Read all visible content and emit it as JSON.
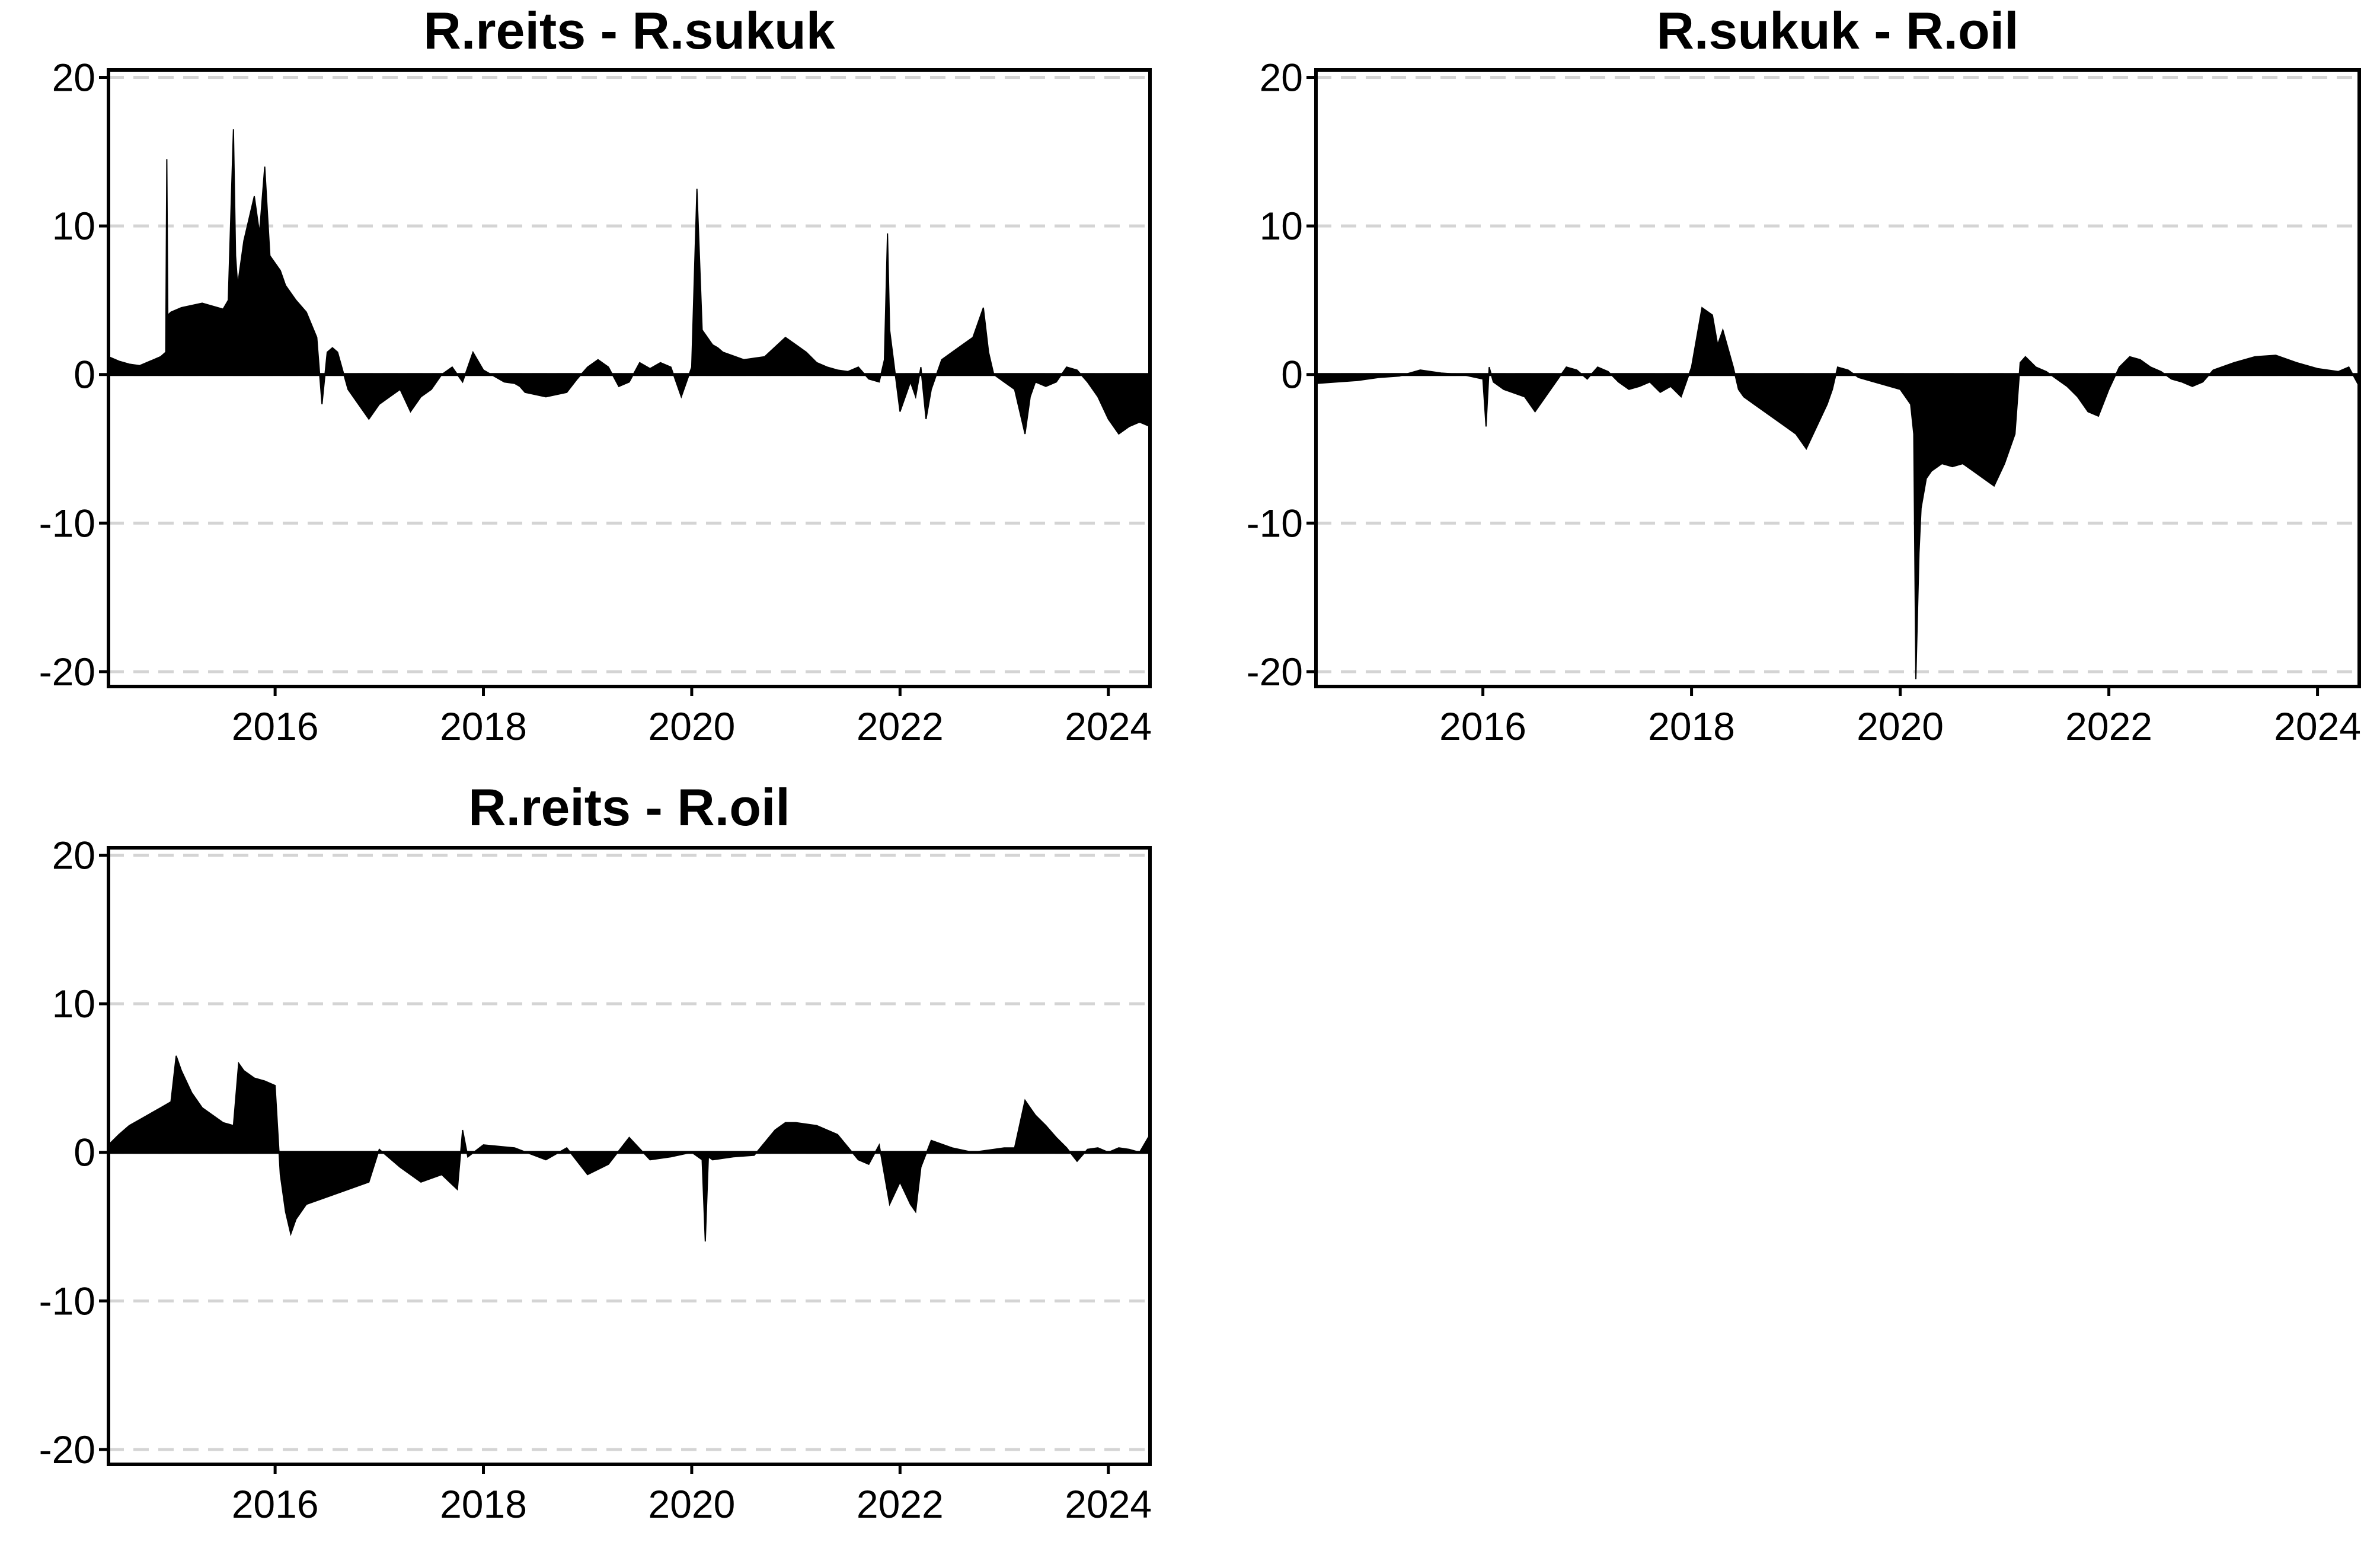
{
  "chart_data": [
    {
      "type": "area",
      "title": "R.reits - R.sukuk",
      "xlabel": "",
      "ylabel": "",
      "xlim": [
        2014.4,
        2024.4
      ],
      "ylim": [
        -21,
        20.5
      ],
      "yticks": [
        20,
        10,
        0,
        -10,
        -20
      ],
      "xticks": [
        2016,
        2018,
        2020,
        2022,
        2024
      ],
      "grid": "horizontal dashed",
      "x": [
        2014.4,
        2014.5,
        2014.6,
        2014.7,
        2014.8,
        2014.9,
        2014.95,
        2014.96,
        2014.97,
        2015.0,
        2015.1,
        2015.3,
        2015.5,
        2015.55,
        2015.6,
        2015.62,
        2015.64,
        2015.7,
        2015.8,
        2015.85,
        2015.9,
        2015.95,
        2016.0,
        2016.05,
        2016.1,
        2016.2,
        2016.3,
        2016.4,
        2016.45,
        2016.5,
        2016.55,
        2016.6,
        2016.7,
        2016.8,
        2016.9,
        2017.0,
        2017.1,
        2017.2,
        2017.3,
        2017.4,
        2017.5,
        2017.6,
        2017.7,
        2017.8,
        2017.9,
        2018.0,
        2018.2,
        2018.3,
        2018.35,
        2018.4,
        2018.6,
        2018.8,
        2018.9,
        2019.0,
        2019.1,
        2019.2,
        2019.3,
        2019.4,
        2019.5,
        2019.6,
        2019.7,
        2019.8,
        2019.9,
        2020.0,
        2020.05,
        2020.1,
        2020.15,
        2020.18,
        2020.2,
        2020.25,
        2020.3,
        2020.5,
        2020.7,
        2020.9,
        2021.0,
        2021.1,
        2021.2,
        2021.3,
        2021.4,
        2021.5,
        2021.6,
        2021.7,
        2021.8,
        2021.85,
        2021.88,
        2021.9,
        2022.0,
        2022.1,
        2022.15,
        2022.2,
        2022.25,
        2022.3,
        2022.4,
        2022.5,
        2022.6,
        2022.7,
        2022.8,
        2022.85,
        2022.9,
        2023.0,
        2023.1,
        2023.2,
        2023.25,
        2023.3,
        2023.4,
        2023.5,
        2023.6,
        2023.7,
        2023.8,
        2023.9,
        2024.0,
        2024.1,
        2024.2,
        2024.3,
        2024.4
      ],
      "y": [
        1.2,
        0.9,
        0.7,
        0.6,
        0.9,
        1.2,
        1.5,
        14.5,
        4.0,
        4.2,
        4.5,
        4.8,
        4.4,
        5.0,
        16.5,
        8.0,
        6.0,
        9.0,
        12.0,
        9.5,
        14.0,
        8.0,
        7.5,
        7.0,
        6.0,
        5.0,
        4.2,
        2.5,
        -2.0,
        1.5,
        1.8,
        1.5,
        -1.0,
        -2.0,
        -3.0,
        -2.0,
        -1.5,
        -1.0,
        -2.5,
        -1.5,
        -1.0,
        0.0,
        0.5,
        -0.5,
        1.5,
        0.3,
        -0.5,
        -0.6,
        -0.8,
        -1.2,
        -1.5,
        -1.2,
        -0.3,
        0.5,
        1.0,
        0.5,
        -0.8,
        -0.5,
        0.8,
        0.4,
        0.8,
        0.5,
        -1.5,
        0.5,
        12.5,
        3.0,
        2.5,
        2.2,
        2.0,
        1.8,
        1.5,
        1.0,
        1.2,
        2.5,
        2.0,
        1.5,
        0.8,
        0.5,
        0.3,
        0.2,
        0.5,
        -0.3,
        -0.5,
        1.0,
        9.5,
        3.0,
        -2.5,
        -0.5,
        -1.5,
        0.5,
        -3.0,
        -1.0,
        1.0,
        1.5,
        2.0,
        2.5,
        4.5,
        1.5,
        0.0,
        -0.5,
        -1.0,
        -4.0,
        -1.5,
        -0.5,
        -0.8,
        -0.5,
        0.5,
        0.3,
        -0.5,
        -1.5,
        -3.0,
        -4.0,
        -3.5,
        -3.2,
        -3.5
      ]
    },
    {
      "type": "area",
      "title": "R.sukuk - R.oil",
      "xlabel": "",
      "ylabel": "",
      "xlim": [
        2014.4,
        2024.4
      ],
      "ylim": [
        -21,
        20.5
      ],
      "yticks": [
        20,
        10,
        0,
        -10,
        -20
      ],
      "xticks": [
        2016,
        2018,
        2020,
        2022,
        2024
      ],
      "grid": "horizontal dashed",
      "x": [
        2014.4,
        2014.6,
        2014.8,
        2015.0,
        2015.2,
        2015.4,
        2015.6,
        2015.8,
        2016.0,
        2016.03,
        2016.06,
        2016.1,
        2016.2,
        2016.4,
        2016.5,
        2016.6,
        2016.7,
        2016.8,
        2016.9,
        2017.0,
        2017.1,
        2017.2,
        2017.3,
        2017.4,
        2017.5,
        2017.6,
        2017.7,
        2017.8,
        2017.9,
        2018.0,
        2018.1,
        2018.2,
        2018.25,
        2018.3,
        2018.4,
        2018.45,
        2018.5,
        2018.6,
        2018.7,
        2018.8,
        2018.9,
        2019.0,
        2019.1,
        2019.2,
        2019.3,
        2019.35,
        2019.4,
        2019.5,
        2019.6,
        2019.7,
        2019.8,
        2019.9,
        2020.0,
        2020.05,
        2020.1,
        2020.13,
        2020.15,
        2020.18,
        2020.2,
        2020.25,
        2020.3,
        2020.4,
        2020.5,
        2020.6,
        2020.7,
        2020.8,
        2020.9,
        2021.0,
        2021.1,
        2021.15,
        2021.2,
        2021.3,
        2021.4,
        2021.5,
        2021.6,
        2021.7,
        2021.8,
        2021.9,
        2022.0,
        2022.1,
        2022.2,
        2022.3,
        2022.4,
        2022.5,
        2022.6,
        2022.7,
        2022.8,
        2022.9,
        2023.0,
        2023.2,
        2023.4,
        2023.6,
        2023.8,
        2024.0,
        2024.2,
        2024.3,
        2024.4
      ],
      "y": [
        -0.6,
        -0.5,
        -0.4,
        -0.2,
        -0.1,
        0.3,
        0.1,
        0.0,
        -0.3,
        -3.5,
        0.5,
        -0.5,
        -1.0,
        -1.5,
        -2.5,
        -1.5,
        -0.5,
        0.5,
        0.3,
        -0.3,
        0.5,
        0.2,
        -0.5,
        -1.0,
        -0.8,
        -0.5,
        -1.2,
        -0.8,
        -1.5,
        0.5,
        4.5,
        4.0,
        2.0,
        3.0,
        0.5,
        -1.0,
        -1.5,
        -2.0,
        -2.5,
        -3.0,
        -3.5,
        -4.0,
        -5.0,
        -3.5,
        -2.0,
        -1.0,
        0.5,
        0.3,
        -0.2,
        -0.4,
        -0.6,
        -0.8,
        -1.0,
        -1.5,
        -2.0,
        -4.0,
        -20.5,
        -12.0,
        -9.0,
        -7.0,
        -6.5,
        -6.0,
        -6.2,
        -6.0,
        -6.5,
        -7.0,
        -7.5,
        -6.0,
        -4.0,
        0.8,
        1.2,
        0.5,
        0.2,
        -0.3,
        -0.8,
        -1.5,
        -2.5,
        -2.8,
        -1.0,
        0.5,
        1.2,
        1.0,
        0.5,
        0.2,
        -0.3,
        -0.5,
        -0.8,
        -0.5,
        0.3,
        0.8,
        1.2,
        1.3,
        0.8,
        0.4,
        0.2,
        0.5,
        -0.8
      ]
    },
    {
      "type": "area",
      "title": "R.reits - R.oil",
      "xlabel": "",
      "ylabel": "",
      "xlim": [
        2014.4,
        2024.4
      ],
      "ylim": [
        -21,
        20.5
      ],
      "yticks": [
        20,
        10,
        0,
        -10,
        -20
      ],
      "xticks": [
        2016,
        2018,
        2020,
        2022,
        2024
      ],
      "grid": "horizontal dashed",
      "x": [
        2014.4,
        2014.5,
        2014.6,
        2014.7,
        2014.8,
        2014.9,
        2015.0,
        2015.05,
        2015.1,
        2015.2,
        2015.3,
        2015.4,
        2015.5,
        2015.6,
        2015.65,
        2015.7,
        2015.8,
        2015.9,
        2016.0,
        2016.05,
        2016.1,
        2016.15,
        2016.2,
        2016.3,
        2016.5,
        2016.7,
        2016.9,
        2017.0,
        2017.2,
        2017.4,
        2017.6,
        2017.75,
        2017.8,
        2017.85,
        2018.0,
        2018.3,
        2018.6,
        2018.8,
        2019.0,
        2019.2,
        2019.4,
        2019.6,
        2019.8,
        2020.0,
        2020.1,
        2020.13,
        2020.16,
        2020.2,
        2020.4,
        2020.6,
        2020.8,
        2020.9,
        2021.0,
        2021.2,
        2021.4,
        2021.6,
        2021.7,
        2021.8,
        2021.9,
        2022.0,
        2022.1,
        2022.15,
        2022.2,
        2022.3,
        2022.5,
        2022.7,
        2022.9,
        2023.0,
        2023.1,
        2023.2,
        2023.25,
        2023.3,
        2023.4,
        2023.5,
        2023.6,
        2023.7,
        2023.8,
        2023.9,
        2024.0,
        2024.1,
        2024.2,
        2024.3,
        2024.4
      ],
      "y": [
        0.5,
        1.2,
        1.8,
        2.2,
        2.6,
        3.0,
        3.4,
        6.5,
        5.5,
        4.0,
        3.0,
        2.5,
        2.0,
        1.8,
        6.0,
        5.5,
        5.0,
        4.8,
        4.5,
        -1.5,
        -4.0,
        -5.5,
        -4.5,
        -3.5,
        -3.0,
        -2.5,
        -2.0,
        0.2,
        -1.0,
        -2.0,
        -1.5,
        -2.5,
        1.5,
        -0.3,
        0.5,
        0.3,
        -0.5,
        0.3,
        -1.5,
        -0.8,
        1.0,
        -0.5,
        -0.3,
        0.0,
        -0.5,
        -6.0,
        -0.3,
        -0.5,
        -0.3,
        -0.2,
        1.5,
        2.0,
        2.0,
        1.8,
        1.2,
        -0.5,
        -0.8,
        0.5,
        -3.5,
        -2.0,
        -3.5,
        -4.0,
        -1.0,
        0.8,
        0.3,
        0.0,
        0.2,
        0.3,
        0.3,
        3.5,
        3.0,
        2.5,
        1.8,
        1.0,
        0.3,
        -0.6,
        0.2,
        0.3,
        0.0,
        0.3,
        0.2,
        0.0,
        1.2
      ]
    }
  ]
}
